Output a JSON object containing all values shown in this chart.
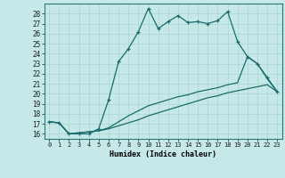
{
  "xlabel": "Humidex (Indice chaleur)",
  "xlim": [
    -0.5,
    23.5
  ],
  "ylim": [
    15.5,
    29.0
  ],
  "xticks": [
    0,
    1,
    2,
    3,
    4,
    5,
    6,
    7,
    8,
    9,
    10,
    11,
    12,
    13,
    14,
    15,
    16,
    17,
    18,
    19,
    20,
    21,
    22,
    23
  ],
  "yticks": [
    16,
    17,
    18,
    19,
    20,
    21,
    22,
    23,
    24,
    25,
    26,
    27,
    28
  ],
  "bg_color": "#c6e8e8",
  "line_color": "#1a6b6b",
  "line1_x": [
    0,
    1,
    2,
    3,
    4,
    5,
    6,
    7,
    8,
    9,
    10,
    11,
    12,
    13,
    14,
    15,
    16,
    17,
    18,
    19,
    20,
    21,
    22,
    23
  ],
  "line1_y": [
    17.2,
    17.1,
    16.0,
    16.0,
    16.0,
    16.5,
    19.4,
    23.2,
    24.5,
    26.2,
    28.5,
    26.5,
    27.2,
    27.8,
    27.1,
    27.2,
    27.0,
    27.3,
    28.2,
    25.2,
    23.7,
    23.0,
    21.6,
    20.2
  ],
  "line2_x": [
    0,
    1,
    2,
    3,
    4,
    5,
    6,
    7,
    8,
    9,
    10,
    11,
    12,
    13,
    14,
    15,
    16,
    17,
    18,
    19,
    20,
    21,
    22,
    23
  ],
  "line2_y": [
    17.2,
    17.1,
    16.0,
    16.1,
    16.2,
    16.3,
    16.6,
    17.2,
    17.8,
    18.3,
    18.8,
    19.1,
    19.4,
    19.7,
    19.9,
    20.2,
    20.4,
    20.6,
    20.9,
    21.1,
    23.7,
    23.0,
    21.5,
    20.2
  ],
  "line3_x": [
    0,
    1,
    2,
    3,
    4,
    5,
    6,
    7,
    8,
    9,
    10,
    11,
    12,
    13,
    14,
    15,
    16,
    17,
    18,
    19,
    20,
    21,
    22,
    23
  ],
  "line3_y": [
    17.2,
    17.1,
    16.0,
    16.1,
    16.2,
    16.3,
    16.5,
    16.8,
    17.1,
    17.4,
    17.8,
    18.1,
    18.4,
    18.7,
    19.0,
    19.3,
    19.6,
    19.8,
    20.1,
    20.3,
    20.5,
    20.7,
    20.9,
    20.2
  ]
}
